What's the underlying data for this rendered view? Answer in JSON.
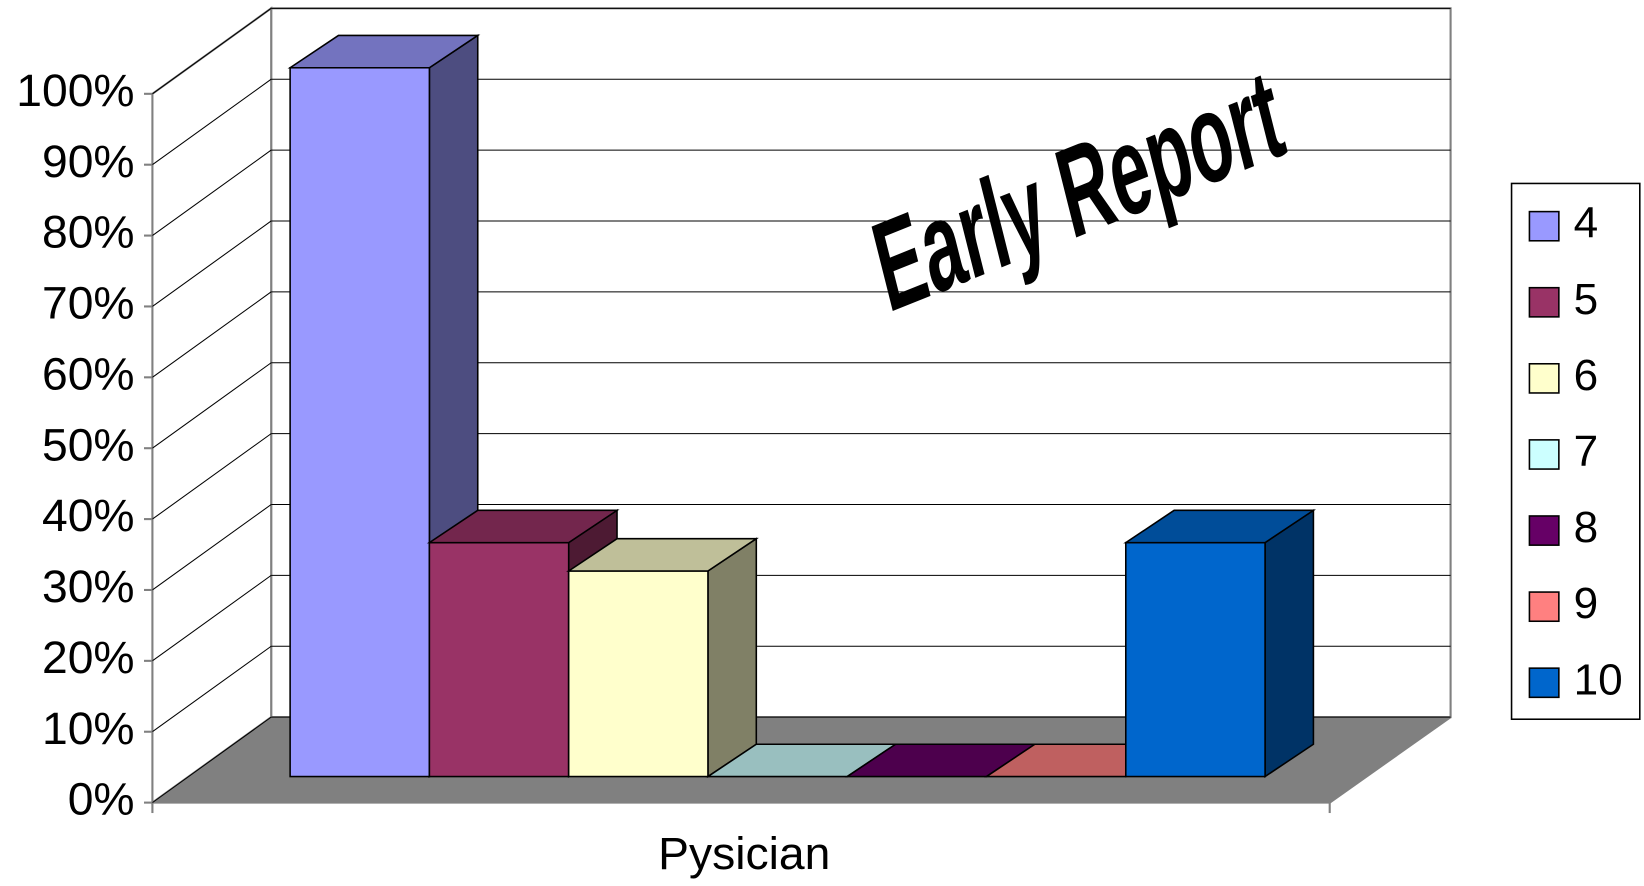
{
  "chart_data": {
    "type": "bar3d",
    "title": "Early Report",
    "categories": [
      "Pysician"
    ],
    "series": [
      {
        "name": "4",
        "color": "#9999ff",
        "values": [
          100
        ]
      },
      {
        "name": "5",
        "color": "#993366",
        "values": [
          33
        ]
      },
      {
        "name": "6",
        "color": "#ffffcc",
        "values": [
          29
        ]
      },
      {
        "name": "7",
        "color": "#ccffff",
        "values": [
          0
        ]
      },
      {
        "name": "8",
        "color": "#660066",
        "values": [
          0
        ]
      },
      {
        "name": "9",
        "color": "#ff8080",
        "values": [
          0
        ]
      },
      {
        "name": "10",
        "color": "#0066cc",
        "values": [
          33
        ]
      }
    ],
    "ylim": [
      0,
      100
    ],
    "yticks": [
      {
        "value": 0,
        "label": "0%"
      },
      {
        "value": 10,
        "label": "10%"
      },
      {
        "value": 20,
        "label": "20%"
      },
      {
        "value": 30,
        "label": "30%"
      },
      {
        "value": 40,
        "label": "40%"
      },
      {
        "value": 50,
        "label": "50%"
      },
      {
        "value": 60,
        "label": "60%"
      },
      {
        "value": 70,
        "label": "70%"
      },
      {
        "value": 80,
        "label": "80%"
      },
      {
        "value": 90,
        "label": "90%"
      },
      {
        "value": 100,
        "label": "100%"
      }
    ],
    "grid": true,
    "legend": "right"
  }
}
